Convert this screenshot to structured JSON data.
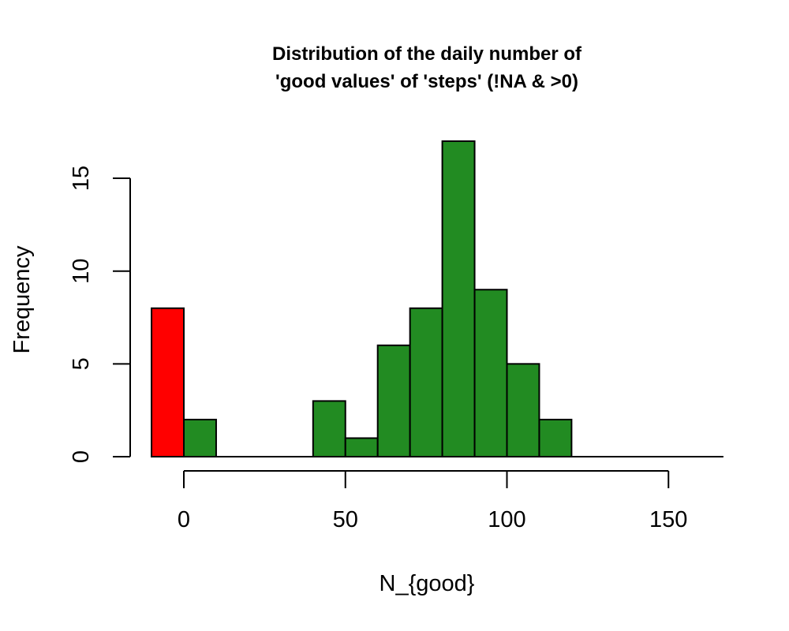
{
  "chart_data": {
    "type": "bar",
    "title_lines": [
      "Distribution of the daily number of",
      "'good values' of 'steps' (!NA & >0)"
    ],
    "xlabel": "N_{good}",
    "ylabel": "Frequency",
    "bin_width": 10,
    "bins": [
      {
        "start": -10,
        "end": 0,
        "count": 8,
        "color": "#ff0000"
      },
      {
        "start": 0,
        "end": 10,
        "count": 2,
        "color": "#228b22"
      },
      {
        "start": 10,
        "end": 20,
        "count": 0,
        "color": "#228b22"
      },
      {
        "start": 20,
        "end": 30,
        "count": 0,
        "color": "#228b22"
      },
      {
        "start": 30,
        "end": 40,
        "count": 0,
        "color": "#228b22"
      },
      {
        "start": 40,
        "end": 50,
        "count": 3,
        "color": "#228b22"
      },
      {
        "start": 50,
        "end": 60,
        "count": 1,
        "color": "#228b22"
      },
      {
        "start": 60,
        "end": 70,
        "count": 6,
        "color": "#228b22"
      },
      {
        "start": 70,
        "end": 80,
        "count": 8,
        "color": "#228b22"
      },
      {
        "start": 80,
        "end": 90,
        "count": 17,
        "color": "#228b22"
      },
      {
        "start": 90,
        "end": 100,
        "count": 9,
        "color": "#228b22"
      },
      {
        "start": 100,
        "end": 110,
        "count": 5,
        "color": "#228b22"
      },
      {
        "start": 110,
        "end": 120,
        "count": 2,
        "color": "#228b22"
      }
    ],
    "baseline_x_range": [
      -10,
      167
    ],
    "xticks": [
      0,
      50,
      100,
      150
    ],
    "yticks": [
      0,
      5,
      10,
      15
    ],
    "xlim": [
      -10,
      167
    ],
    "ylim": [
      0,
      17
    ],
    "grid": false,
    "colors": {
      "zero_bin": "#ff0000",
      "positive_bins": "#228b22"
    }
  }
}
